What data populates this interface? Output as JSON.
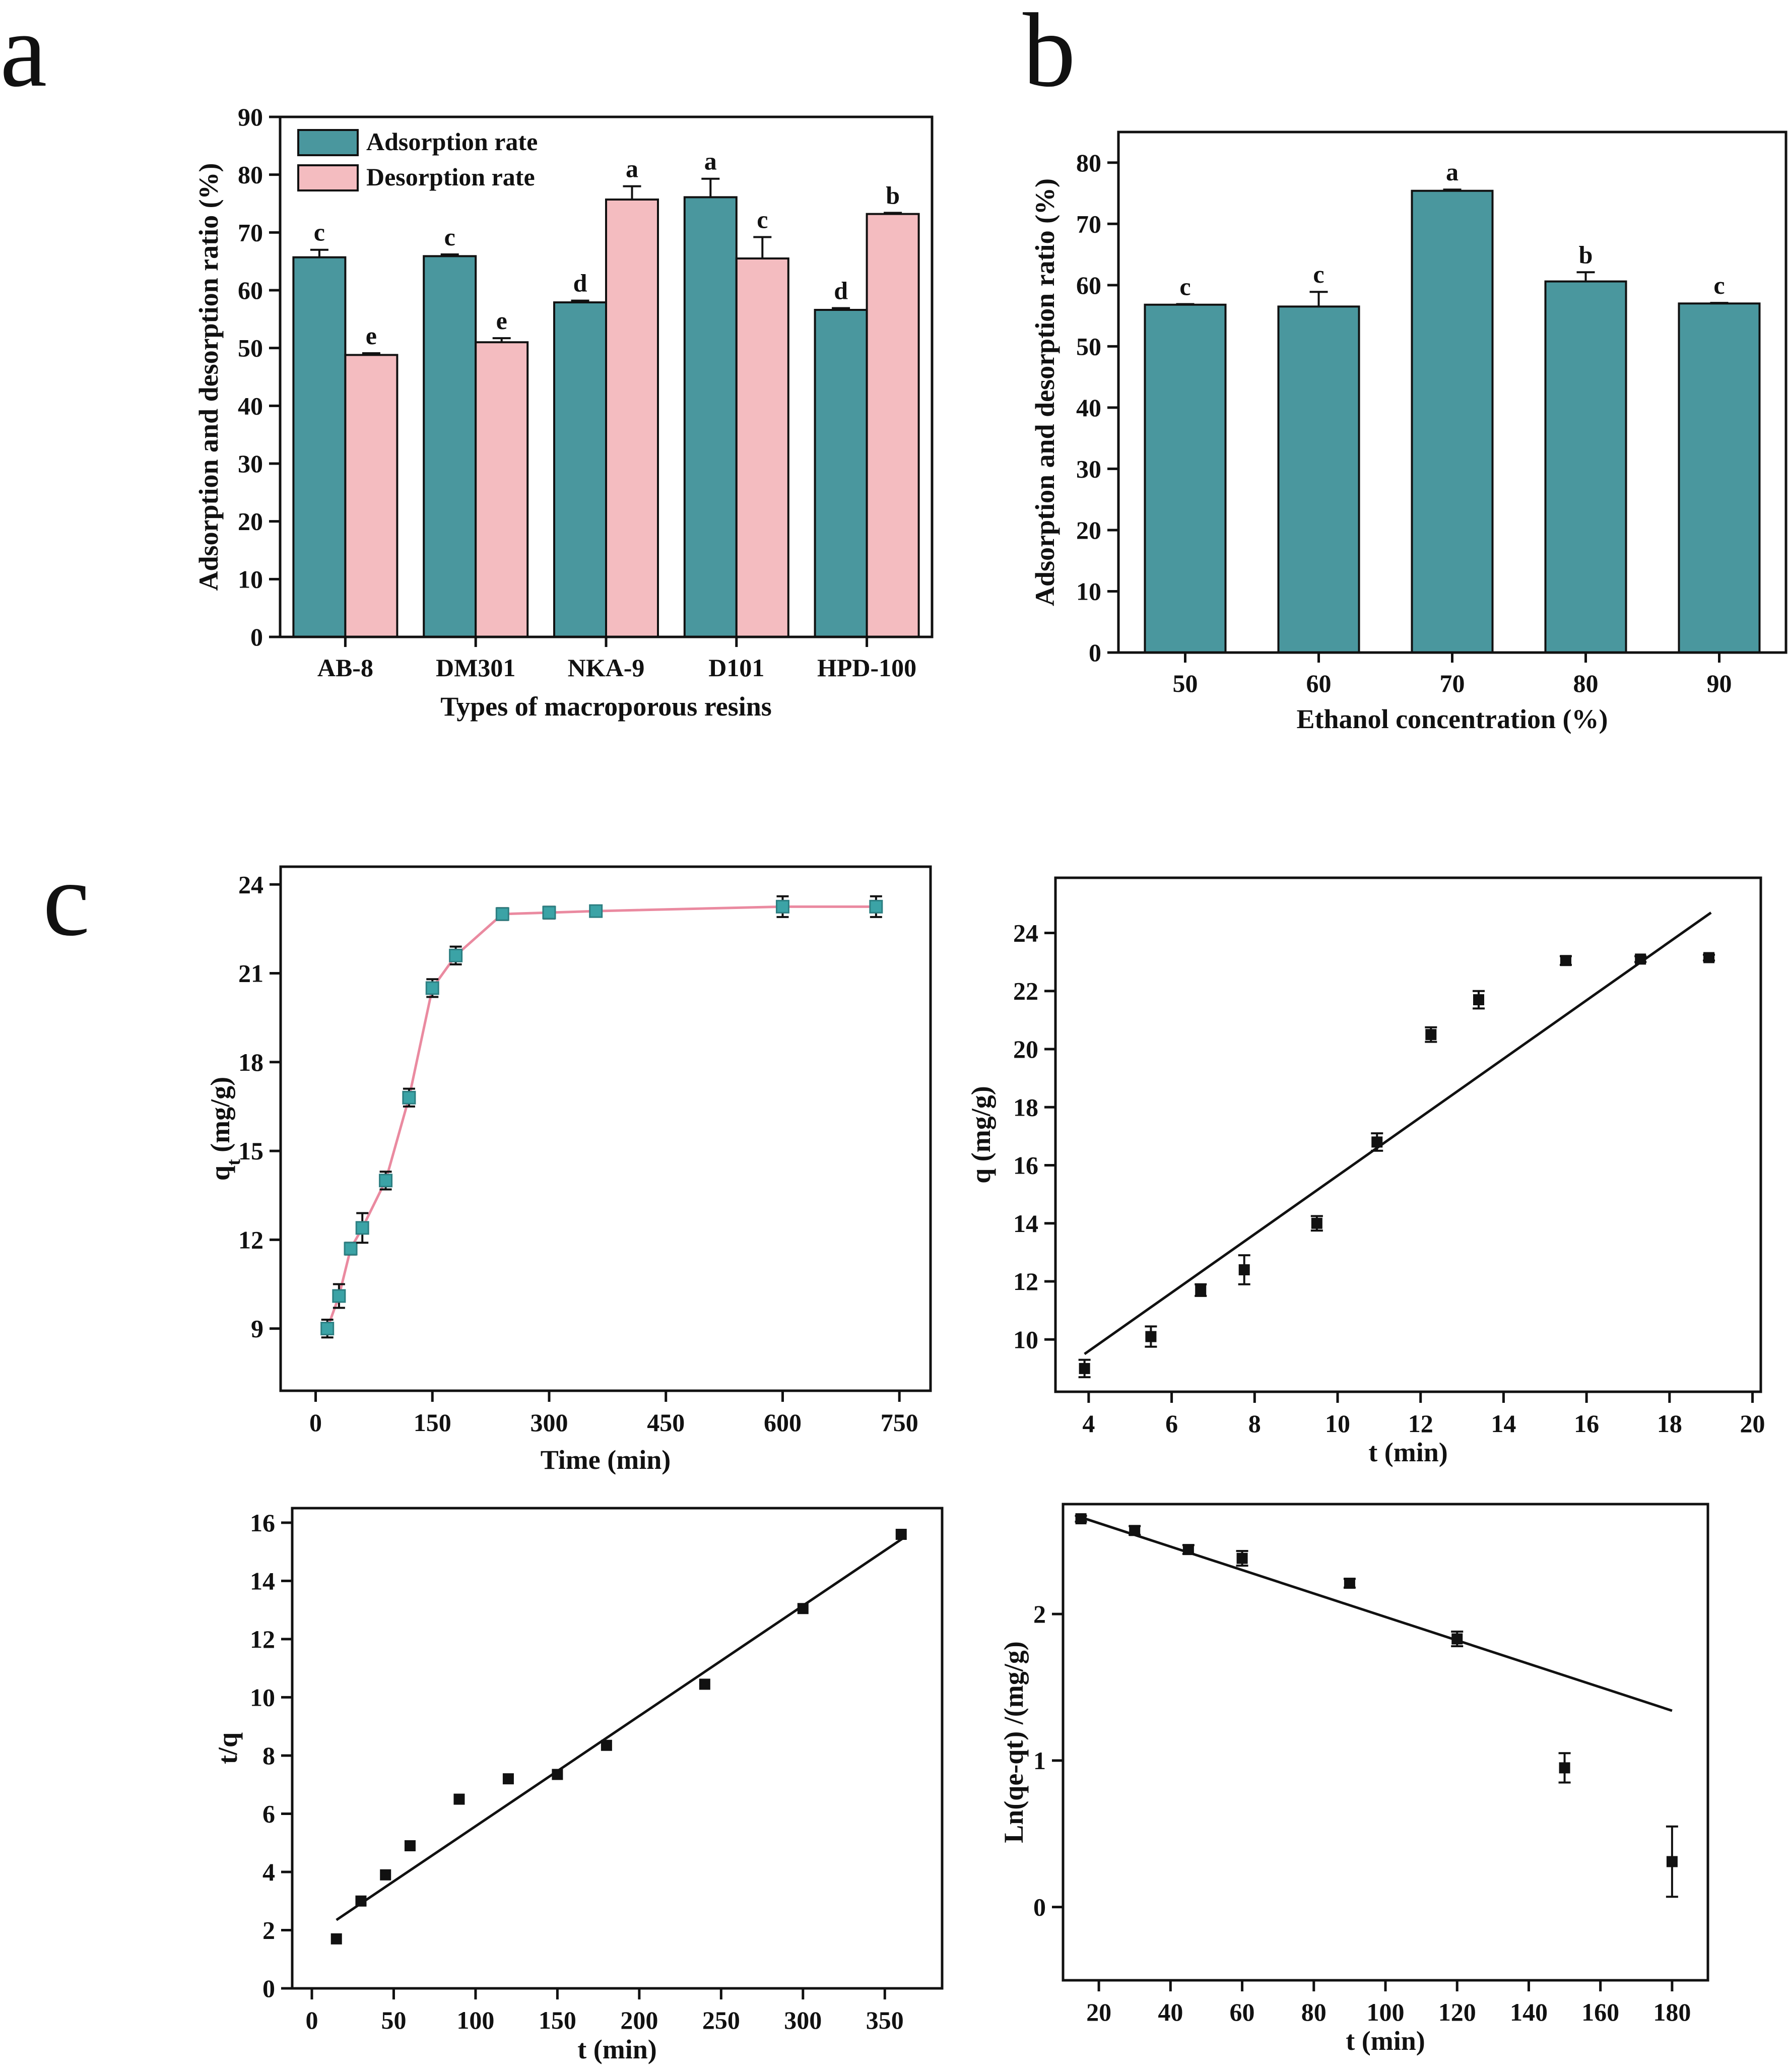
{
  "panels": {
    "a": "a",
    "b": "b",
    "c": "c"
  },
  "colors": {
    "adsorption": "#4a979e",
    "desorption": "#f4bcc0",
    "kinetic_marker": "#3ba3a6",
    "kinetic_line": "#ea8aa0",
    "black": "#111111"
  },
  "chart_data": [
    {
      "id": "a",
      "type": "bar",
      "categories": [
        "AB-8",
        "DM301",
        "NKA-9",
        "D101",
        "HPD-100"
      ],
      "series": [
        {
          "name": "Adsorption rate",
          "values": [
            65.7,
            65.9,
            57.9,
            76.1,
            56.6
          ],
          "errors": [
            1.3,
            0.3,
            0.3,
            3.2,
            0.3
          ],
          "letters": [
            "c",
            "c",
            "d",
            "a",
            "d"
          ]
        },
        {
          "name": "Desorption rate",
          "values": [
            48.8,
            51.0,
            75.7,
            65.5,
            73.2
          ],
          "errors": [
            0.3,
            0.7,
            2.3,
            3.7,
            0.2
          ],
          "letters": [
            "e",
            "e",
            "a",
            "c",
            "b"
          ]
        }
      ],
      "xlabel": "Types of macroporous resins",
      "ylabel": "Adsorption and desorption ratio (%)",
      "ylim": [
        0,
        90
      ],
      "yticks": [
        0,
        10,
        20,
        30,
        40,
        50,
        60,
        70,
        80,
        90
      ],
      "legend": "top-left",
      "grid": false
    },
    {
      "id": "b",
      "type": "bar",
      "categories": [
        "50",
        "60",
        "70",
        "80",
        "90"
      ],
      "series": [
        {
          "values": [
            56.8,
            56.5,
            75.4,
            60.6,
            57.0
          ],
          "errors": [
            0.1,
            2.4,
            0.2,
            1.5,
            0.1
          ],
          "letters": [
            "c",
            "c",
            "a",
            "b",
            "c"
          ]
        }
      ],
      "xlabel": "Ethanol concentration (%)",
      "ylabel": "Adsorption and desorption ratio (%)",
      "ylim": [
        0,
        85
      ],
      "yticks": [
        0,
        10,
        20,
        30,
        40,
        50,
        60,
        70,
        80
      ],
      "grid": false
    },
    {
      "id": "c1",
      "type": "line",
      "x": [
        15,
        30,
        45,
        60,
        90,
        120,
        150,
        180,
        240,
        300,
        360,
        600,
        720
      ],
      "y": [
        9.0,
        10.1,
        11.7,
        12.4,
        14.0,
        16.8,
        20.5,
        21.6,
        23.0,
        23.05,
        23.1,
        23.25,
        23.25
      ],
      "errors": [
        0.3,
        0.4,
        0.2,
        0.5,
        0.3,
        0.3,
        0.3,
        0.3,
        0.2,
        0.2,
        0.15,
        0.35,
        0.35
      ],
      "xlabel": "Time (min)",
      "ylabel_main": "q",
      "ylabel_sub": "t",
      "ylabel_tail": " (mg/g)",
      "xlim": [
        -45,
        790
      ],
      "ylim": [
        6.9,
        24.6
      ],
      "xticks": [
        0,
        150,
        300,
        450,
        600,
        750
      ],
      "yticks": [
        9,
        12,
        15,
        18,
        21,
        24
      ],
      "grid": false
    },
    {
      "id": "c2",
      "type": "scatter",
      "x": [
        3.9,
        5.5,
        6.7,
        7.75,
        9.5,
        10.95,
        12.25,
        13.4,
        15.5,
        17.3,
        18.95
      ],
      "y": [
        9.0,
        10.1,
        11.7,
        12.4,
        14.0,
        16.8,
        20.5,
        21.7,
        23.05,
        23.1,
        23.15
      ],
      "errors": [
        0.3,
        0.35,
        0.2,
        0.5,
        0.25,
        0.3,
        0.25,
        0.3,
        0.15,
        0.1,
        0.1
      ],
      "fit": {
        "x": [
          3.9,
          19.0
        ],
        "y": [
          9.5,
          24.7
        ]
      },
      "xlabel": "t (min)",
      "ylabel": "q (mg/g)",
      "xlim": [
        3.2,
        20.2
      ],
      "ylim": [
        8.2,
        25.9
      ],
      "xticks": [
        4,
        6,
        8,
        10,
        12,
        14,
        16,
        18,
        20
      ],
      "yticks": [
        10,
        12,
        14,
        16,
        18,
        20,
        22,
        24
      ],
      "grid": false
    },
    {
      "id": "c3",
      "type": "scatter",
      "x": [
        15,
        30,
        45,
        60,
        90,
        120,
        150,
        180,
        240,
        300,
        360
      ],
      "y": [
        1.7,
        3.0,
        3.9,
        4.9,
        6.5,
        7.2,
        7.35,
        8.35,
        10.45,
        13.05,
        15.6
      ],
      "fit": {
        "x": [
          15,
          362
        ],
        "y": [
          2.35,
          15.5
        ]
      },
      "xlabel": "t (min)",
      "ylabel": "t/q",
      "xlim": [
        -12,
        385
      ],
      "ylim": [
        0,
        16.5
      ],
      "xticks": [
        0,
        50,
        100,
        150,
        200,
        250,
        300,
        350
      ],
      "yticks": [
        0,
        2,
        4,
        6,
        8,
        10,
        12,
        14,
        16
      ],
      "grid": false
    },
    {
      "id": "c4",
      "type": "scatter",
      "x": [
        15,
        30,
        45,
        60,
        90,
        120,
        150,
        180
      ],
      "y": [
        2.65,
        2.57,
        2.44,
        2.38,
        2.21,
        1.83,
        0.95,
        0.31
      ],
      "errors": [
        0.02,
        0.03,
        0.03,
        0.05,
        0.03,
        0.05,
        0.1,
        0.24
      ],
      "fit": {
        "x": [
          15,
          180
        ],
        "y": [
          2.66,
          1.34
        ]
      },
      "xlabel": "t (min)",
      "ylabel": "Ln(qe-qt) /(mg/g)",
      "xlim": [
        10,
        190
      ],
      "ylim": [
        -0.5,
        2.75
      ],
      "xticks": [
        20,
        40,
        60,
        80,
        100,
        120,
        140,
        160,
        180
      ],
      "yticks": [
        0,
        1,
        2
      ],
      "grid": false
    }
  ]
}
